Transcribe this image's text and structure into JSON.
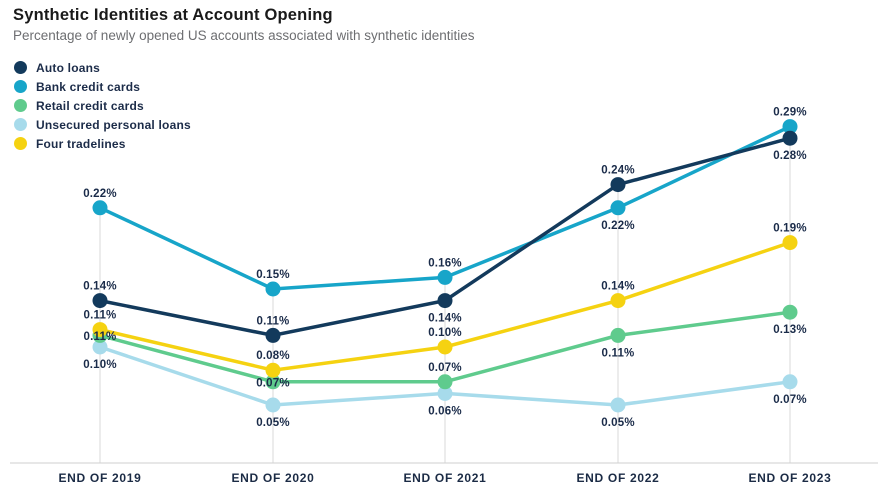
{
  "header": {
    "title": "Synthetic Identities at Account Opening",
    "subtitle": "Percentage of newly opened US accounts associated with synthetic identities"
  },
  "chart_data": {
    "type": "line",
    "title": "Synthetic Identities at Account Opening",
    "subtitle": "Percentage of newly opened US accounts associated with synthetic identities",
    "categories": [
      "END OF 2019",
      "END OF 2020",
      "END OF 2021",
      "END OF 2022",
      "END OF 2023"
    ],
    "unit": "%",
    "ylim": [
      0,
      0.32
    ],
    "grid": "vertical-per-category",
    "legend_position": "top-left",
    "gridline_color": "#d9d9d9",
    "axis_line_color": "#cfcfcf",
    "value_label_color": "#1a2b49",
    "series": [
      {
        "name": "Auto loans",
        "color": "#133a5c",
        "values": [
          0.14,
          0.11,
          0.14,
          0.24,
          0.28
        ],
        "point_labels": [
          "0.14%",
          "0.11%",
          "0.14%",
          "0.24%",
          "0.28%"
        ],
        "label_pos": [
          "above",
          "above",
          "below",
          "above",
          "below"
        ]
      },
      {
        "name": "Bank credit cards",
        "color": "#17a5c9",
        "values": [
          0.22,
          0.15,
          0.16,
          0.22,
          0.29
        ],
        "point_labels": [
          "0.22%",
          "0.15%",
          "0.16%",
          "0.22%",
          "0.29%"
        ],
        "label_pos": [
          "above",
          "above",
          "above",
          "below",
          "above"
        ]
      },
      {
        "name": "Retail credit cards",
        "color": "#5fcb8d",
        "values": [
          0.11,
          0.07,
          0.07,
          0.11,
          0.13
        ],
        "point_labels": [
          "0.11%",
          "0.07%",
          "0.07%",
          "0.11%",
          "0.13%"
        ],
        "label_pos": [
          "on",
          "on",
          "above",
          "below",
          "below"
        ]
      },
      {
        "name": "Unsecured personal loans",
        "color": "#a7dbeb",
        "values": [
          0.1,
          0.05,
          0.06,
          0.05,
          0.07
        ],
        "point_labels": [
          "0.10%",
          "0.05%",
          "0.06%",
          "0.05%",
          "0.07%"
        ],
        "label_pos": [
          "below",
          "below",
          "below",
          "below",
          "below"
        ]
      },
      {
        "name": "Four tradelines",
        "color": "#f5d211",
        "values": [
          0.11,
          0.08,
          0.1,
          0.14,
          0.19
        ],
        "point_labels": [
          "0.11%",
          "0.08%",
          "0.10%",
          "0.14%",
          "0.19%"
        ],
        "label_pos": [
          "above",
          "above",
          "above",
          "above",
          "above"
        ]
      }
    ]
  }
}
